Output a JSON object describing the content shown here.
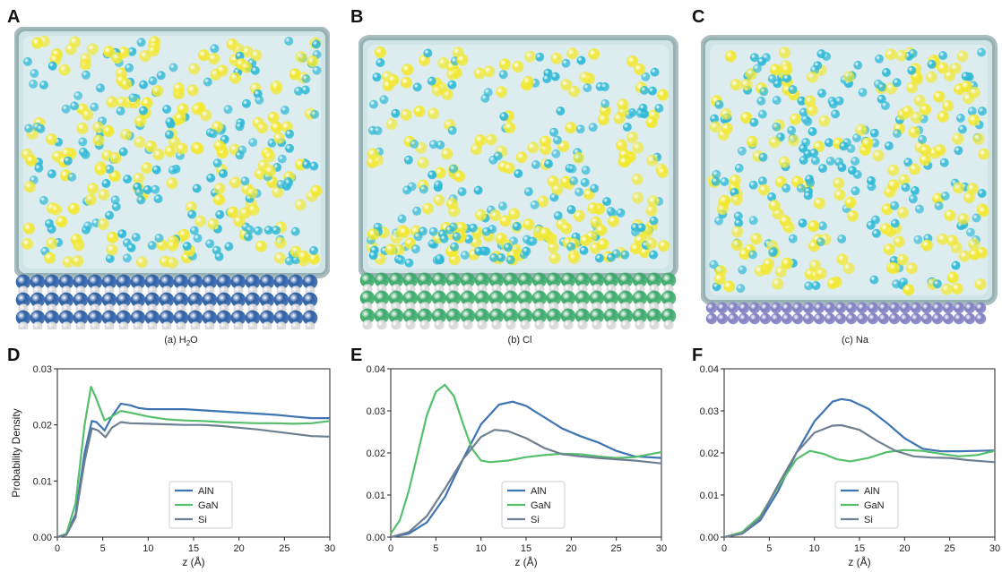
{
  "colors": {
    "water": "#cfe4e6",
    "box_edge": "#6f8f93",
    "solvent_yellow": "#f2e830",
    "solvent_cyan": "#2cb8d6",
    "aln": "#3d74b1",
    "gan": "#55bf6b",
    "si": "#6f7f92",
    "slab_blue": "#2d5fa6",
    "slab_green": "#3daa6a",
    "slab_purple": "#8080c2",
    "slab_white": "#d9d9d9"
  },
  "panels_top": [
    {
      "letter": "A",
      "caption_main": "(a) H",
      "caption_sub": "2",
      "caption_tail": "O",
      "slab": "blue"
    },
    {
      "letter": "B",
      "caption_main": "(b) Cl",
      "caption_sub": "",
      "caption_tail": "",
      "slab": "green"
    },
    {
      "letter": "C",
      "caption_main": "(c) Na",
      "caption_sub": "",
      "caption_tail": "",
      "slab": "purple"
    }
  ],
  "chart_data": [
    {
      "type": "line",
      "panel": "D",
      "xlabel": "z (Å)",
      "ylabel": "Probability Density",
      "xlim": [
        0,
        30
      ],
      "ylim": [
        0,
        0.03
      ],
      "xticks": [
        "0",
        "5",
        "10",
        "15",
        "20",
        "25",
        "30"
      ],
      "yticks": [
        "0.00",
        "0.01",
        "0.02",
        "0.03"
      ],
      "ytick_values": [
        0,
        0.01,
        0.02,
        0.03
      ],
      "legend_position": "lower-center",
      "series": [
        {
          "name": "AlN",
          "color": "#3d74b1",
          "points": [
            [
              0,
              0
            ],
            [
              1,
              0.0005
            ],
            [
              2,
              0.004
            ],
            [
              3,
              0.015
            ],
            [
              3.8,
              0.0207
            ],
            [
              4.3,
              0.0205
            ],
            [
              5.2,
              0.019
            ],
            [
              6,
              0.0215
            ],
            [
              7,
              0.0238
            ],
            [
              8,
              0.0235
            ],
            [
              9,
              0.023
            ],
            [
              10,
              0.0228
            ],
            [
              12,
              0.0228
            ],
            [
              14,
              0.0228
            ],
            [
              16,
              0.0226
            ],
            [
              18,
              0.0224
            ],
            [
              20,
              0.0222
            ],
            [
              22,
              0.022
            ],
            [
              24,
              0.0218
            ],
            [
              26,
              0.0215
            ],
            [
              28,
              0.0212
            ],
            [
              30,
              0.0212
            ]
          ]
        },
        {
          "name": "GaN",
          "color": "#55bf6b",
          "points": [
            [
              0,
              0
            ],
            [
              1,
              0.0006
            ],
            [
              2,
              0.006
            ],
            [
              3,
              0.02
            ],
            [
              3.7,
              0.0268
            ],
            [
              4.2,
              0.025
            ],
            [
              5.2,
              0.0208
            ],
            [
              6,
              0.0215
            ],
            [
              7,
              0.0225
            ],
            [
              8,
              0.0222
            ],
            [
              10,
              0.0215
            ],
            [
              12,
              0.021
            ],
            [
              14,
              0.0208
            ],
            [
              16,
              0.0207
            ],
            [
              18,
              0.0205
            ],
            [
              20,
              0.0204
            ],
            [
              22,
              0.0203
            ],
            [
              24,
              0.0203
            ],
            [
              26,
              0.0202
            ],
            [
              28,
              0.0203
            ],
            [
              30,
              0.0207
            ]
          ]
        },
        {
          "name": "Si",
          "color": "#6f7f92",
          "points": [
            [
              0,
              0
            ],
            [
              1,
              0.0004
            ],
            [
              2,
              0.0035
            ],
            [
              3,
              0.0135
            ],
            [
              3.8,
              0.0194
            ],
            [
              4.5,
              0.019
            ],
            [
              5.3,
              0.0178
            ],
            [
              6,
              0.0195
            ],
            [
              7,
              0.0205
            ],
            [
              8,
              0.0203
            ],
            [
              10,
              0.0202
            ],
            [
              12,
              0.0201
            ],
            [
              14,
              0.02
            ],
            [
              16,
              0.02
            ],
            [
              18,
              0.0198
            ],
            [
              20,
              0.0195
            ],
            [
              22,
              0.0192
            ],
            [
              24,
              0.0188
            ],
            [
              26,
              0.0184
            ],
            [
              28,
              0.018
            ],
            [
              30,
              0.0179
            ]
          ]
        }
      ]
    },
    {
      "type": "line",
      "panel": "E",
      "xlabel": "z (Å)",
      "ylabel": "",
      "xlim": [
        0,
        30
      ],
      "ylim": [
        0,
        0.04
      ],
      "xticks": [
        "0",
        "5",
        "10",
        "15",
        "20",
        "25",
        "30"
      ],
      "yticks": [
        "0.00",
        "0.01",
        "0.02",
        "0.03",
        "0.04"
      ],
      "ytick_values": [
        0,
        0.01,
        0.02,
        0.03,
        0.04
      ],
      "legend_position": "lower-center",
      "series": [
        {
          "name": "AlN",
          "color": "#3d74b1",
          "points": [
            [
              0,
              0
            ],
            [
              2,
              0.0008
            ],
            [
              4,
              0.0035
            ],
            [
              6,
              0.0095
            ],
            [
              8,
              0.0185
            ],
            [
              10,
              0.0268
            ],
            [
              12,
              0.0315
            ],
            [
              13.5,
              0.0322
            ],
            [
              15,
              0.0312
            ],
            [
              17,
              0.0285
            ],
            [
              19,
              0.0258
            ],
            [
              21,
              0.024
            ],
            [
              23,
              0.0225
            ],
            [
              25,
              0.0205
            ],
            [
              27,
              0.0192
            ],
            [
              30,
              0.0188
            ]
          ]
        },
        {
          "name": "GaN",
          "color": "#55bf6b",
          "points": [
            [
              0,
              0.0008
            ],
            [
              1,
              0.004
            ],
            [
              2,
              0.011
            ],
            [
              3,
              0.02
            ],
            [
              4,
              0.029
            ],
            [
              5,
              0.0345
            ],
            [
              6,
              0.0362
            ],
            [
              7,
              0.0335
            ],
            [
              8,
              0.027
            ],
            [
              9,
              0.021
            ],
            [
              10,
              0.0182
            ],
            [
              11,
              0.0178
            ],
            [
              13,
              0.0182
            ],
            [
              15,
              0.019
            ],
            [
              17,
              0.0195
            ],
            [
              19,
              0.0198
            ],
            [
              21,
              0.0197
            ],
            [
              23,
              0.0192
            ],
            [
              25,
              0.0188
            ],
            [
              27,
              0.019
            ],
            [
              30,
              0.0202
            ]
          ]
        },
        {
          "name": "Si",
          "color": "#6f7f92",
          "points": [
            [
              0,
              0
            ],
            [
              2,
              0.0012
            ],
            [
              4,
              0.005
            ],
            [
              6,
              0.0115
            ],
            [
              8,
              0.0185
            ],
            [
              10,
              0.0238
            ],
            [
              11.5,
              0.0255
            ],
            [
              13,
              0.0252
            ],
            [
              15,
              0.0235
            ],
            [
              17,
              0.0212
            ],
            [
              19,
              0.0197
            ],
            [
              21,
              0.0192
            ],
            [
              23,
              0.0188
            ],
            [
              25,
              0.0185
            ],
            [
              27,
              0.0182
            ],
            [
              30,
              0.0175
            ]
          ]
        }
      ]
    },
    {
      "type": "line",
      "panel": "F",
      "xlabel": "z (Å)",
      "ylabel": "",
      "xlim": [
        0,
        30
      ],
      "ylim": [
        0,
        0.04
      ],
      "xticks": [
        "0",
        "5",
        "10",
        "15",
        "20",
        "25",
        "30"
      ],
      "yticks": [
        "0.00",
        "0.01",
        "0.02",
        "0.03",
        "0.04"
      ],
      "ytick_values": [
        0,
        0.01,
        0.02,
        0.03,
        0.04
      ],
      "legend_position": "lower-center",
      "series": [
        {
          "name": "AlN",
          "color": "#3d74b1",
          "points": [
            [
              0,
              0
            ],
            [
              2,
              0.0008
            ],
            [
              4,
              0.004
            ],
            [
              6,
              0.011
            ],
            [
              8,
              0.02
            ],
            [
              10,
              0.0275
            ],
            [
              12,
              0.0322
            ],
            [
              13,
              0.0328
            ],
            [
              14,
              0.0325
            ],
            [
              16,
              0.0305
            ],
            [
              18,
              0.0272
            ],
            [
              20,
              0.0235
            ],
            [
              22,
              0.021
            ],
            [
              24,
              0.0204
            ],
            [
              26,
              0.0204
            ],
            [
              28,
              0.0205
            ],
            [
              30,
              0.0206
            ]
          ]
        },
        {
          "name": "GaN",
          "color": "#55bf6b",
          "points": [
            [
              0,
              0
            ],
            [
              2,
              0.0012
            ],
            [
              4,
              0.005
            ],
            [
              6,
              0.012
            ],
            [
              8,
              0.0185
            ],
            [
              9.5,
              0.0205
            ],
            [
              11,
              0.0198
            ],
            [
              12.5,
              0.0185
            ],
            [
              14,
              0.018
            ],
            [
              16,
              0.0188
            ],
            [
              18,
              0.0202
            ],
            [
              20,
              0.0207
            ],
            [
              22,
              0.0205
            ],
            [
              24,
              0.0198
            ],
            [
              26,
              0.0192
            ],
            [
              28,
              0.0195
            ],
            [
              30,
              0.0205
            ]
          ]
        },
        {
          "name": "Si",
          "color": "#6f7f92",
          "points": [
            [
              0,
              0
            ],
            [
              2,
              0.0008
            ],
            [
              4,
              0.0045
            ],
            [
              6,
              0.0125
            ],
            [
              8,
              0.02
            ],
            [
              10,
              0.0248
            ],
            [
              12,
              0.0265
            ],
            [
              13,
              0.0266
            ],
            [
              15,
              0.0255
            ],
            [
              17,
              0.0228
            ],
            [
              19,
              0.0205
            ],
            [
              21,
              0.0192
            ],
            [
              23,
              0.0189
            ],
            [
              25,
              0.0188
            ],
            [
              27,
              0.0183
            ],
            [
              30,
              0.0178
            ]
          ]
        }
      ]
    }
  ]
}
